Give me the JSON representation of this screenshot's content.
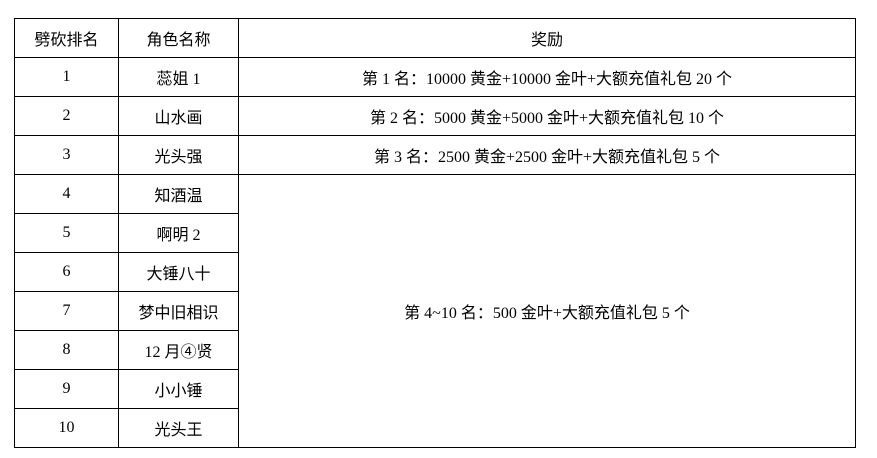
{
  "table": {
    "title_semantic": "chop-ranking-reward-table",
    "colors": {
      "border": "#000000",
      "text": "#000000",
      "background": "#ffffff"
    },
    "headers": [
      "劈砍排名",
      "角色名称",
      "奖励"
    ],
    "rows": [
      {
        "rank": "1",
        "name": "蕊姐 1"
      },
      {
        "rank": "2",
        "name": "山水画"
      },
      {
        "rank": "3",
        "name": "光头强"
      },
      {
        "rank": "4",
        "name": "知酒温"
      },
      {
        "rank": "5",
        "name": "啊明 2"
      },
      {
        "rank": "6",
        "name": "大锤八十"
      },
      {
        "rank": "7",
        "name": "梦中旧相识"
      },
      {
        "rank": "8",
        "name": "12 月④贤"
      },
      {
        "rank": "9",
        "name": "小小锤"
      },
      {
        "rank": "10",
        "name": "光头王"
      }
    ],
    "rewards": {
      "r1": "第 1 名：10000 黄金+10000 金叶+大额充值礼包 20 个",
      "r2": "第 2 名：5000 黄金+5000 金叶+大额充值礼包 10 个",
      "r3": "第 3 名：2500 黄金+2500 金叶+大额充值礼包 5 个",
      "r4_10": "第 4~10 名：500 金叶+大额充值礼包 5 个"
    }
  }
}
